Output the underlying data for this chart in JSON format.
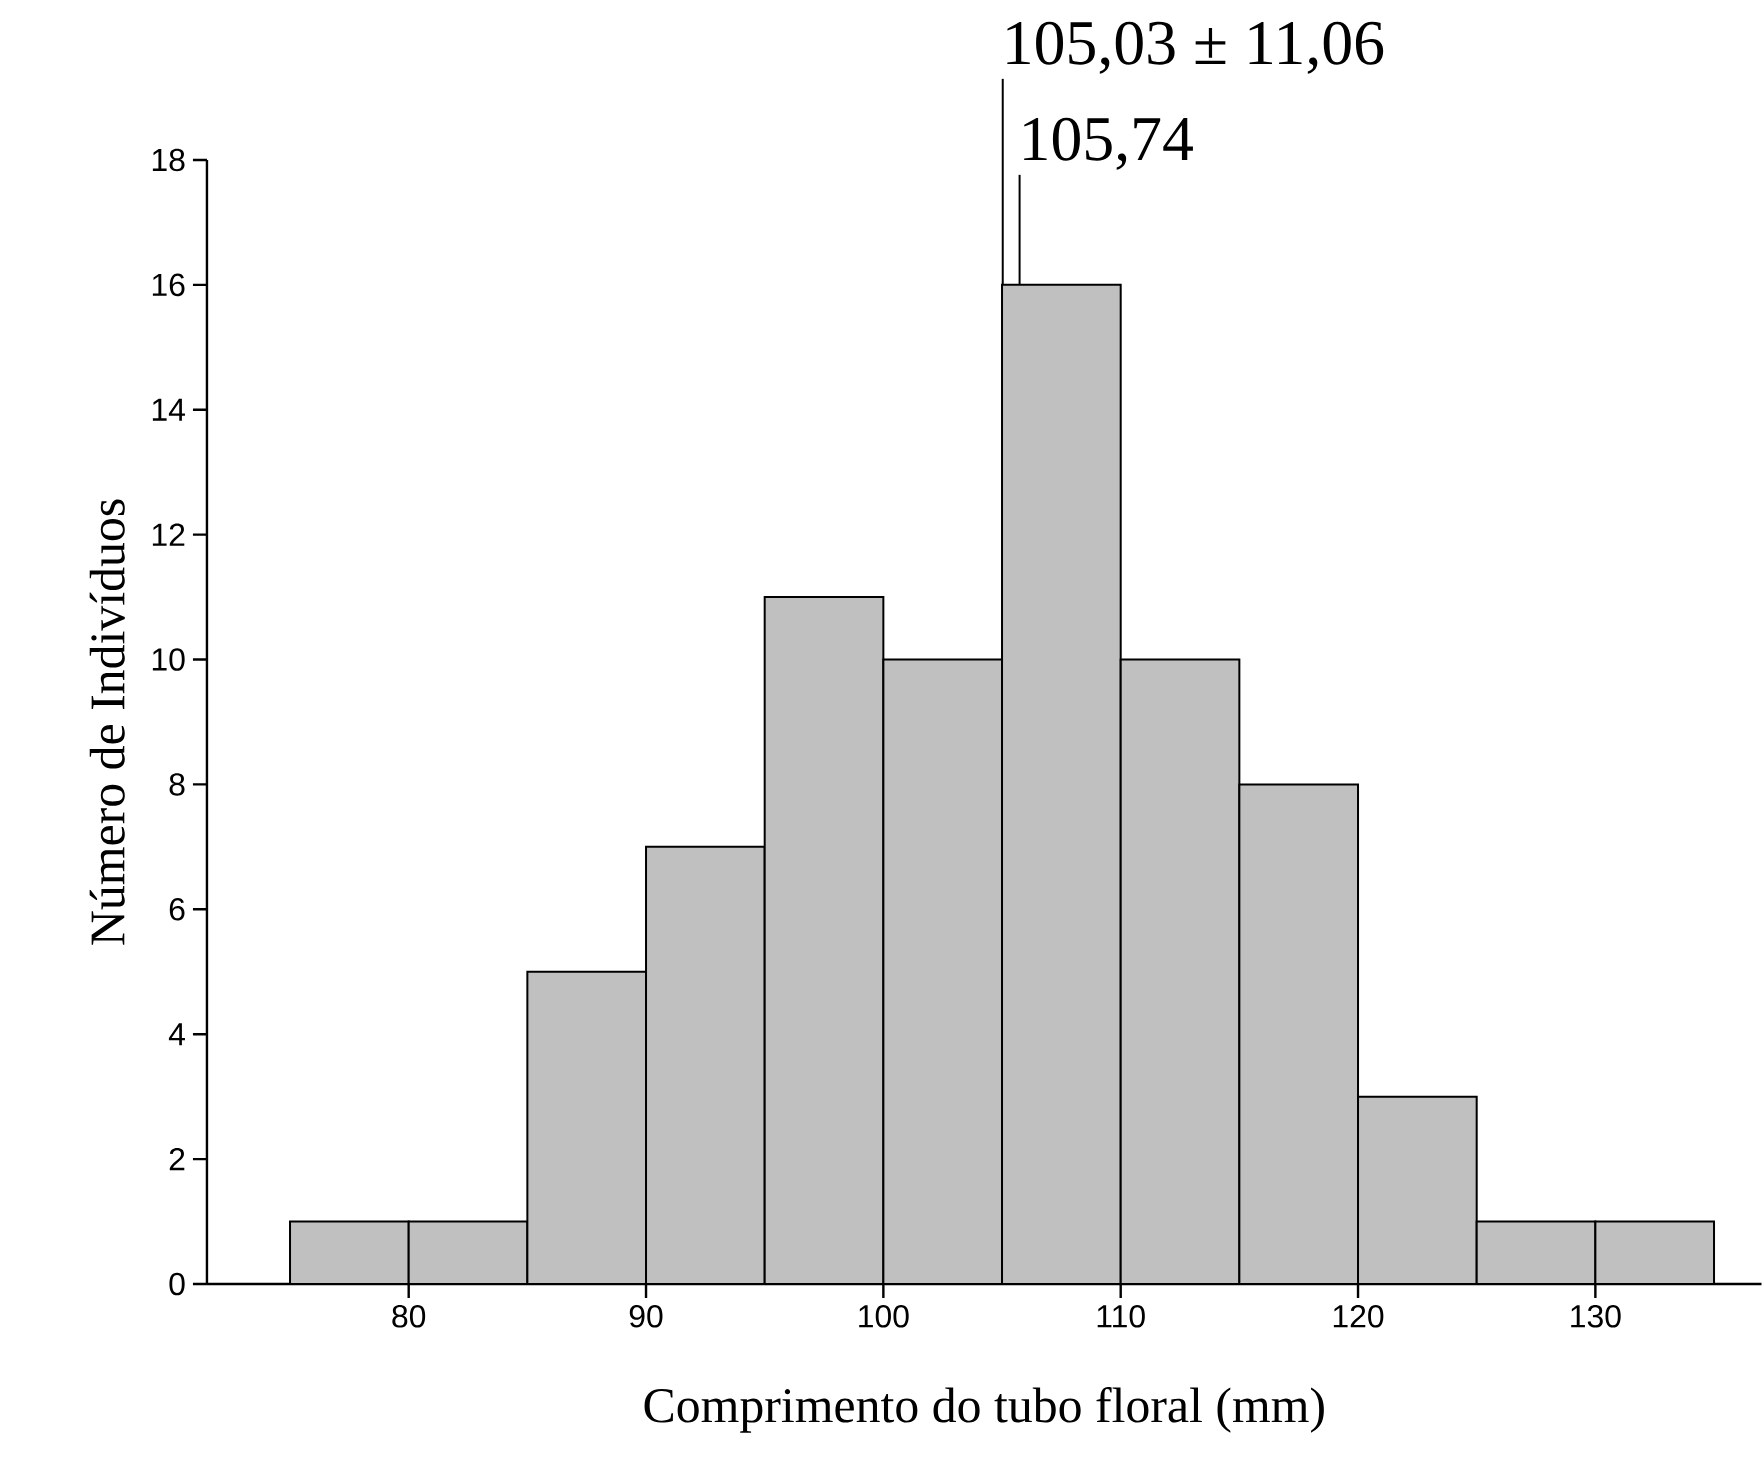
{
  "chart_data": {
    "type": "histogram",
    "xlabel": "Comprimento do tubo floral (mm)",
    "ylabel": "Número de Indivíduos",
    "bins": [
      75,
      80,
      85,
      90,
      95,
      100,
      105,
      110,
      115,
      120,
      125,
      130,
      135
    ],
    "values": [
      1,
      1,
      5,
      7,
      11,
      10,
      16,
      10,
      8,
      3,
      1,
      1
    ],
    "color": "#c0c0c0",
    "xlim": [
      71.5,
      137
    ],
    "xticks": [
      80,
      90,
      100,
      110,
      120,
      130
    ],
    "ylim": [
      0,
      18
    ],
    "yticks": [
      0,
      2,
      4,
      6,
      8,
      10,
      12,
      14,
      16,
      18
    ],
    "grid": false,
    "annotations": [
      {
        "text": "105,03 ± 11,06",
        "x": 105.03,
        "y": 16
      },
      {
        "text": "105,74",
        "x": 105.74,
        "y": 16
      }
    ]
  }
}
